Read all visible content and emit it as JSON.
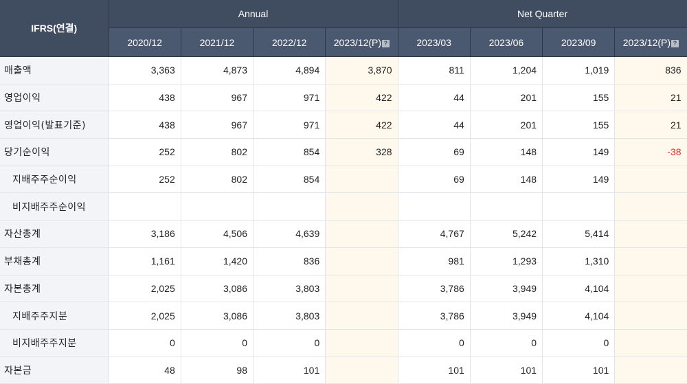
{
  "header": {
    "corner": "IFRS(연결)",
    "groups": [
      "Annual",
      "Net Quarter"
    ],
    "periods": [
      "2020/12",
      "2021/12",
      "2022/12",
      "2023/12(P)",
      "2023/03",
      "2023/06",
      "2023/09",
      "2023/12(P)"
    ],
    "estimate_columns": [
      3,
      7
    ]
  },
  "rows": [
    {
      "label": "매출액",
      "sub": false,
      "values": [
        "3,363",
        "4,873",
        "4,894",
        "3,870",
        "811",
        "1,204",
        "1,019",
        "836"
      ]
    },
    {
      "label": "영업이익",
      "sub": false,
      "values": [
        "438",
        "967",
        "971",
        "422",
        "44",
        "201",
        "155",
        "21"
      ]
    },
    {
      "label": "영업이익(발표기준)",
      "sub": false,
      "values": [
        "438",
        "967",
        "971",
        "422",
        "44",
        "201",
        "155",
        "21"
      ]
    },
    {
      "label": "당기순이익",
      "sub": false,
      "values": [
        "252",
        "802",
        "854",
        "328",
        "69",
        "148",
        "149",
        "-38"
      ]
    },
    {
      "label": "지배주주순이익",
      "sub": true,
      "values": [
        "252",
        "802",
        "854",
        "",
        "69",
        "148",
        "149",
        ""
      ]
    },
    {
      "label": "비지배주주순이익",
      "sub": true,
      "values": [
        "",
        "",
        "",
        "",
        "",
        "",
        "",
        ""
      ]
    },
    {
      "label": "자산총계",
      "sub": false,
      "values": [
        "3,186",
        "4,506",
        "4,639",
        "",
        "4,767",
        "5,242",
        "5,414",
        ""
      ]
    },
    {
      "label": "부채총계",
      "sub": false,
      "values": [
        "1,161",
        "1,420",
        "836",
        "",
        "981",
        "1,293",
        "1,310",
        ""
      ]
    },
    {
      "label": "자본총계",
      "sub": false,
      "values": [
        "2,025",
        "3,086",
        "3,803",
        "",
        "3,786",
        "3,949",
        "4,104",
        ""
      ]
    },
    {
      "label": "지배주주지분",
      "sub": true,
      "values": [
        "2,025",
        "3,086",
        "3,803",
        "",
        "3,786",
        "3,949",
        "4,104",
        ""
      ]
    },
    {
      "label": "비지배주주지분",
      "sub": true,
      "values": [
        "0",
        "0",
        "0",
        "",
        "0",
        "0",
        "0",
        ""
      ]
    },
    {
      "label": "자본금",
      "sub": false,
      "values": [
        "48",
        "98",
        "101",
        "",
        "101",
        "101",
        "101",
        ""
      ]
    }
  ],
  "colors": {
    "header_bg": "#404d61",
    "label_bg": "#f2f4f7",
    "estimate_bg": "#fff8ed",
    "negative": "#e02b2b"
  }
}
